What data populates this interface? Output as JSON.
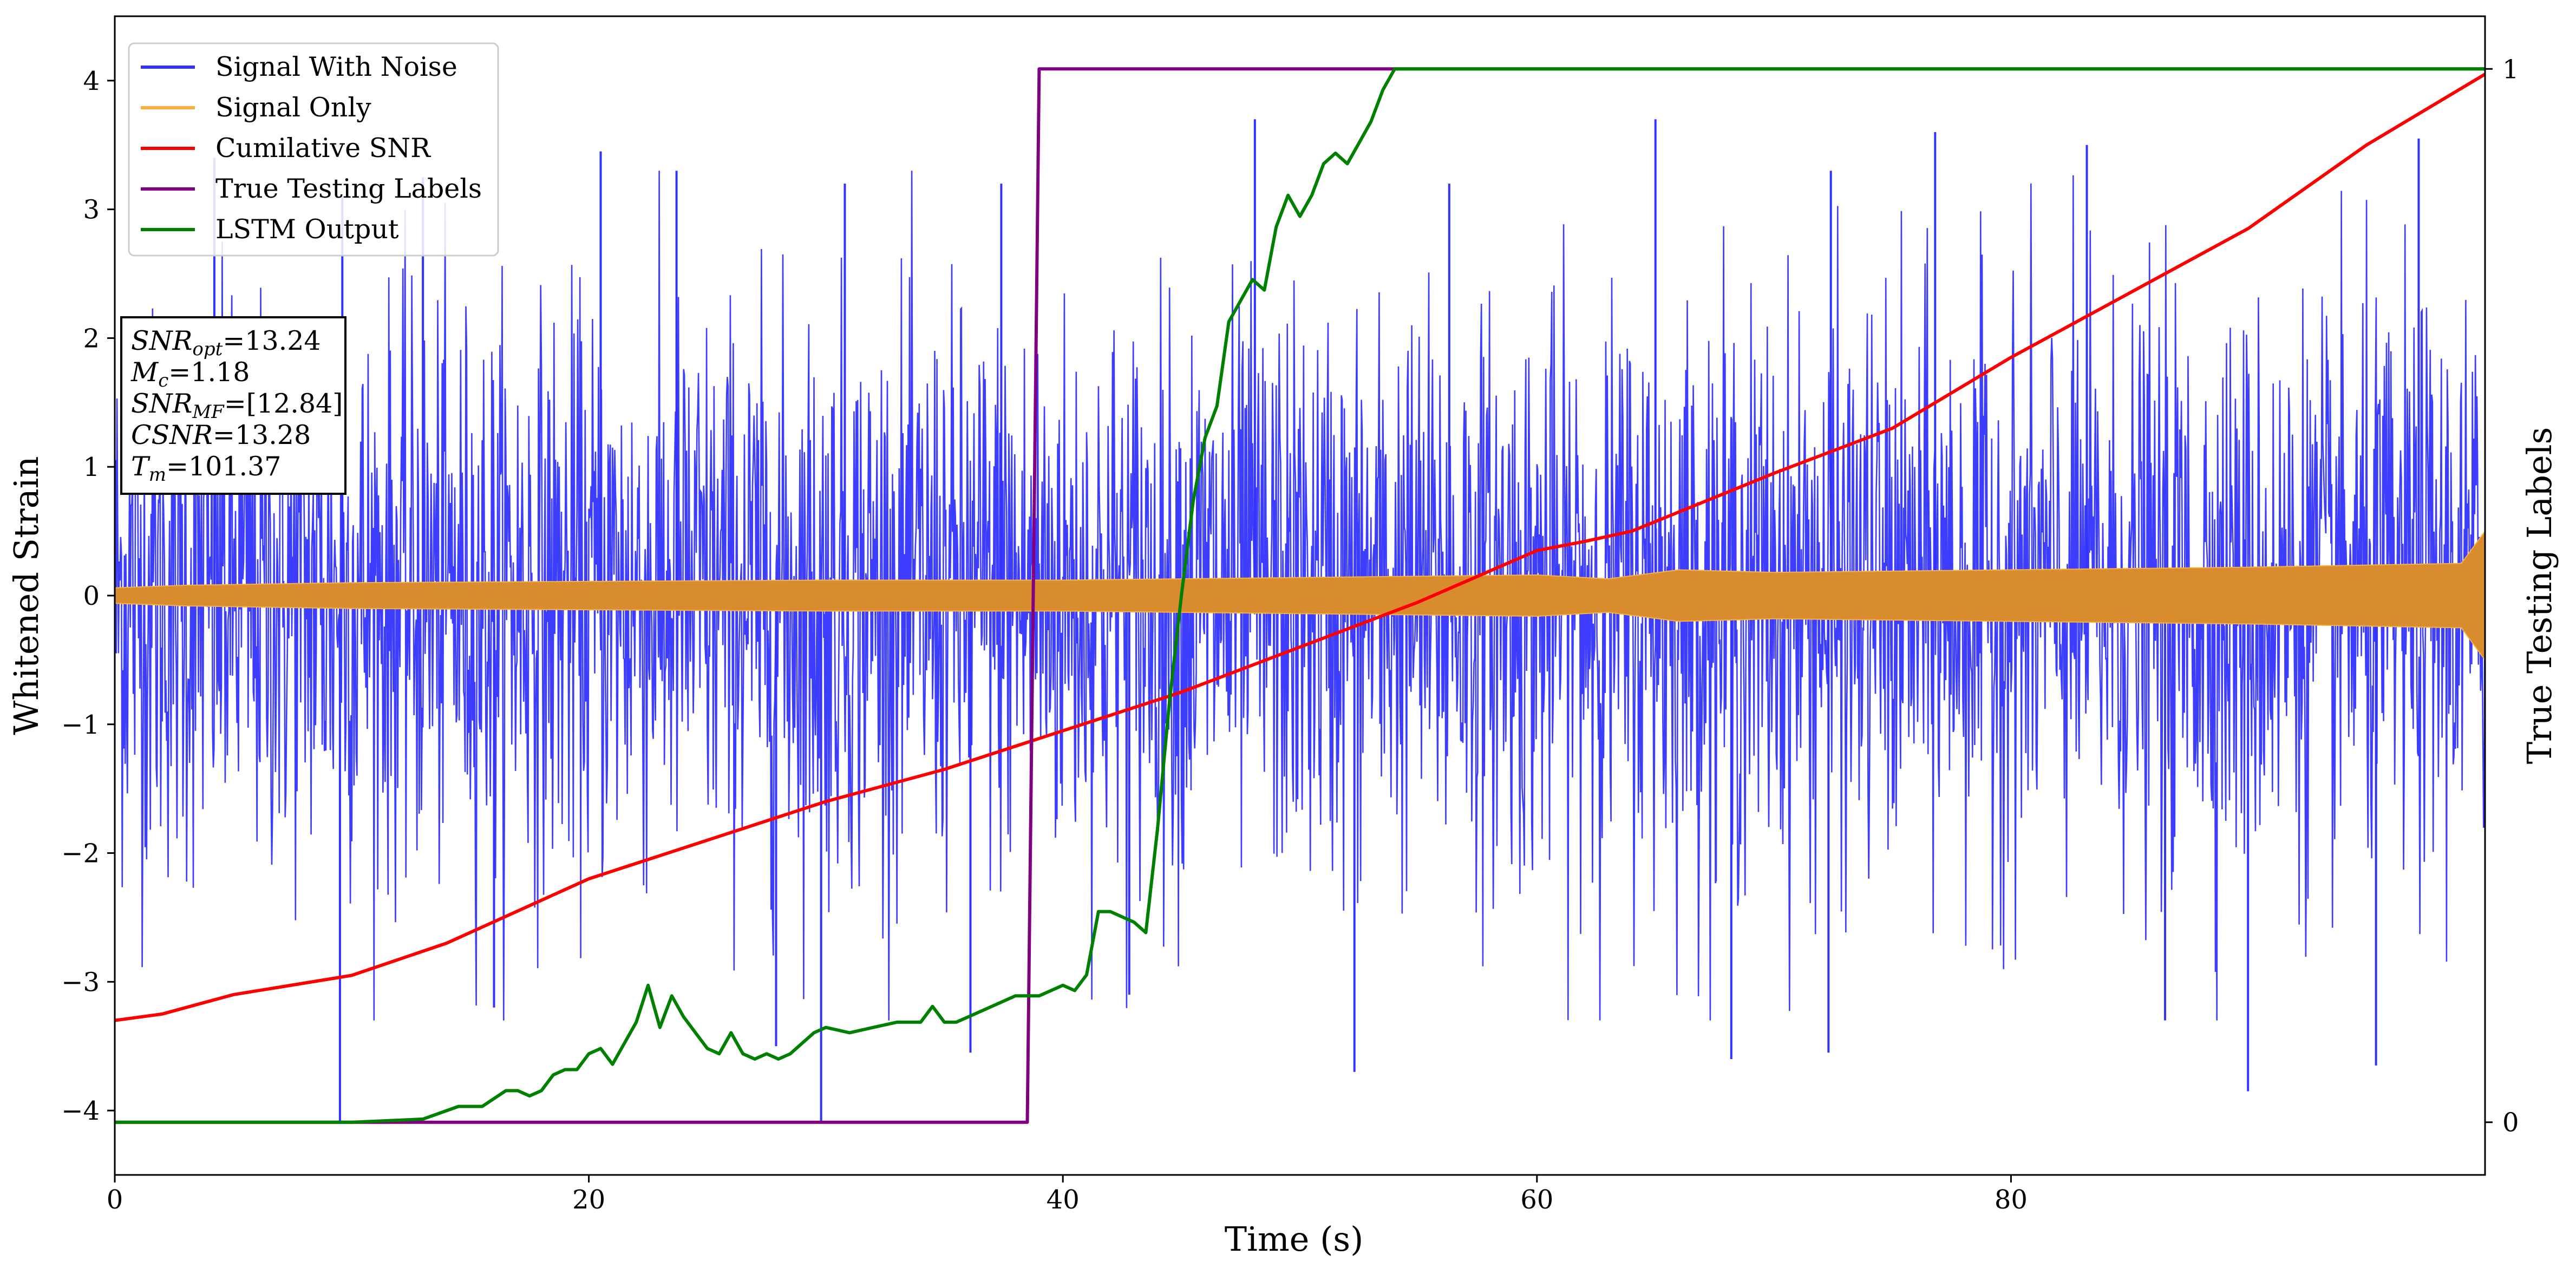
{
  "chart_data": {
    "type": "line",
    "xlabel": "Time (s)",
    "ylabel": "Whitened Strain",
    "y2label": "True Testing Labels",
    "xlim": [
      0,
      100
    ],
    "ylim": [
      -4.5,
      4.5
    ],
    "y2lim": [
      -0.05,
      1.05
    ],
    "xticks": [
      0,
      20,
      40,
      60,
      80
    ],
    "yticks": [
      -4,
      -3,
      -2,
      -1,
      0,
      1,
      2,
      3,
      4
    ],
    "y2ticks": [
      0,
      1
    ],
    "grid": false,
    "legend_position": "top-left",
    "legend": [
      {
        "label": "Signal With Noise",
        "color": "#3333ff"
      },
      {
        "label": "Signal Only",
        "color": "#f5b041"
      },
      {
        "label": "Cumilative SNR",
        "color": "#ff0000"
      },
      {
        "label": "True Testing Labels",
        "color": "#800080"
      },
      {
        "label": "LSTM Output",
        "color": "#008000"
      }
    ],
    "annotation": [
      {
        "sym": "SNR",
        "sub": "opt",
        "text": "=13.24"
      },
      {
        "sym": "M",
        "sub": "c",
        "text": "=1.18"
      },
      {
        "sym": "SNR",
        "sub": "MF",
        "text": "=[12.84]"
      },
      {
        "sym": "CSNR",
        "sub": "",
        "text": "=13.28"
      },
      {
        "sym": "T",
        "sub": "m",
        "text": "=101.37"
      }
    ],
    "series": [
      {
        "name": "Signal With Noise",
        "color": "#3333ff",
        "axis": "left",
        "style": "dense-noise",
        "noise_sigma": 1.1,
        "spikes": [
          {
            "x": 9.5,
            "y": -4.1
          },
          {
            "x": 29.8,
            "y": -4.1
          },
          {
            "x": 4.2,
            "y": 3.4
          },
          {
            "x": 9.6,
            "y": 3.1
          },
          {
            "x": 13.0,
            "y": 3.25
          },
          {
            "x": 20.5,
            "y": 3.45
          },
          {
            "x": 23.7,
            "y": 3.3
          },
          {
            "x": 30.8,
            "y": 3.2
          },
          {
            "x": 37.4,
            "y": 3.2
          },
          {
            "x": 48.1,
            "y": 3.7
          },
          {
            "x": 56.3,
            "y": 3.2
          },
          {
            "x": 65.0,
            "y": 3.7
          },
          {
            "x": 72.4,
            "y": 3.3
          },
          {
            "x": 76.8,
            "y": 3.6
          },
          {
            "x": 83.2,
            "y": 3.5
          },
          {
            "x": 97.2,
            "y": 3.55
          },
          {
            "x": 52.3,
            "y": -3.7
          },
          {
            "x": 68.2,
            "y": -3.6
          },
          {
            "x": 90.0,
            "y": -3.85
          },
          {
            "x": 95.4,
            "y": -3.65
          },
          {
            "x": 36.1,
            "y": -3.55
          },
          {
            "x": 27.9,
            "y": -3.5
          },
          {
            "x": 72.3,
            "y": -3.55
          },
          {
            "x": 16.0,
            "y": -3.2
          },
          {
            "x": 42.8,
            "y": -3.1
          },
          {
            "x": 86.5,
            "y": -3.3
          }
        ]
      },
      {
        "name": "Signal Only",
        "color": "#f5b041",
        "fill_color": "#d98c2e",
        "axis": "left",
        "style": "oscillation-band",
        "amplitude": {
          "x": [
            0,
            3,
            10,
            20,
            30,
            40,
            50,
            60,
            63,
            66,
            70,
            80,
            90,
            99,
            100
          ],
          "y": [
            0.06,
            0.08,
            0.1,
            0.11,
            0.12,
            0.12,
            0.14,
            0.16,
            0.13,
            0.2,
            0.18,
            0.2,
            0.22,
            0.25,
            0.5
          ]
        }
      },
      {
        "name": "Cumilative SNR",
        "color": "#ff0000",
        "axis": "left",
        "x": [
          0,
          2,
          5,
          10,
          14,
          20,
          25,
          30,
          35,
          40,
          45,
          50,
          55,
          60,
          62,
          64,
          66,
          70,
          75,
          80,
          85,
          90,
          95,
          100
        ],
        "y": [
          -3.3,
          -3.25,
          -3.1,
          -2.95,
          -2.7,
          -2.2,
          -1.9,
          -1.6,
          -1.35,
          -1.05,
          -0.75,
          -0.4,
          -0.05,
          0.35,
          0.42,
          0.5,
          0.65,
          0.95,
          1.3,
          1.85,
          2.35,
          2.85,
          3.5,
          4.05
        ]
      },
      {
        "name": "True Testing Labels",
        "color": "#800080",
        "axis": "right",
        "x": [
          0,
          38.5,
          39.0,
          100
        ],
        "y": [
          0,
          0,
          1,
          1
        ]
      },
      {
        "name": "LSTM Output",
        "color": "#008000",
        "axis": "right",
        "x": [
          0,
          10,
          13,
          14.5,
          15.5,
          16.5,
          17,
          17.5,
          18,
          18.5,
          19,
          19.5,
          20,
          20.5,
          21,
          21.5,
          22,
          22.5,
          23,
          23.5,
          24,
          24.5,
          25,
          25.5,
          26,
          26.5,
          27,
          27.5,
          28,
          28.5,
          29,
          29.5,
          30,
          31,
          32,
          33,
          34,
          34.5,
          35,
          35.5,
          36,
          37,
          38,
          39,
          40,
          40.5,
          41,
          41.5,
          42,
          42.5,
          43,
          43.5,
          44,
          44.5,
          45,
          45.5,
          46,
          46.5,
          47,
          47.5,
          48,
          48.5,
          49,
          49.5,
          50,
          50.5,
          51,
          51.5,
          52,
          52.5,
          53,
          53.5,
          54,
          54.5,
          55,
          56,
          57,
          58,
          60,
          62,
          65,
          70,
          72,
          100
        ],
        "y": [
          0,
          0,
          0.003,
          0.015,
          0.015,
          0.03,
          0.03,
          0.025,
          0.03,
          0.045,
          0.05,
          0.05,
          0.065,
          0.07,
          0.055,
          0.075,
          0.095,
          0.13,
          0.09,
          0.12,
          0.1,
          0.085,
          0.07,
          0.065,
          0.085,
          0.065,
          0.06,
          0.065,
          0.06,
          0.065,
          0.075,
          0.085,
          0.09,
          0.085,
          0.09,
          0.095,
          0.095,
          0.11,
          0.095,
          0.095,
          0.1,
          0.11,
          0.12,
          0.12,
          0.13,
          0.125,
          0.14,
          0.2,
          0.2,
          0.195,
          0.19,
          0.18,
          0.28,
          0.4,
          0.5,
          0.59,
          0.65,
          0.68,
          0.76,
          0.78,
          0.8,
          0.79,
          0.85,
          0.88,
          0.86,
          0.88,
          0.91,
          0.92,
          0.91,
          0.93,
          0.95,
          0.98,
          1.0,
          1.0,
          1.0,
          1.0,
          1.0,
          1.0,
          1.0,
          1.0,
          1.0,
          1.0,
          1.0,
          1.0
        ]
      }
    ]
  }
}
